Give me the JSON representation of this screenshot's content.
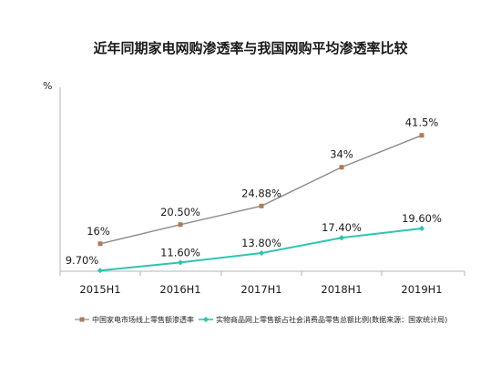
{
  "chart_data": {
    "type": "line",
    "title": "近年同期家电网购渗透率与我国网购平均渗透率比较",
    "unit": "%",
    "categories": [
      "2015H1",
      "2016H1",
      "2017H1",
      "2018H1",
      "2019H1"
    ],
    "series": [
      {
        "name": "中国家电市场线上零售额渗透率",
        "values": [
          16,
          20.5,
          24.88,
          34,
          41.5
        ],
        "labels": [
          "16%",
          "20.50%",
          "24.88%",
          "34%",
          "41.5%"
        ],
        "color": "#8c8c8c",
        "marker_color": "#b07a57",
        "marker": "square"
      },
      {
        "name": "实物商品网上零售额占社会消费品零售总额比例(数据来源：国家统计局)",
        "values": [
          9.7,
          11.6,
          13.8,
          17.4,
          19.6
        ],
        "labels": [
          "9.70%",
          "11.60%",
          "13.80%",
          "17.40%",
          "19.60%"
        ],
        "color": "#2ec4b0",
        "marker_color": "#2ec4b0",
        "marker": "diamond"
      }
    ],
    "ylim": [
      0,
      50
    ],
    "grid": false,
    "legend": "bottom"
  }
}
